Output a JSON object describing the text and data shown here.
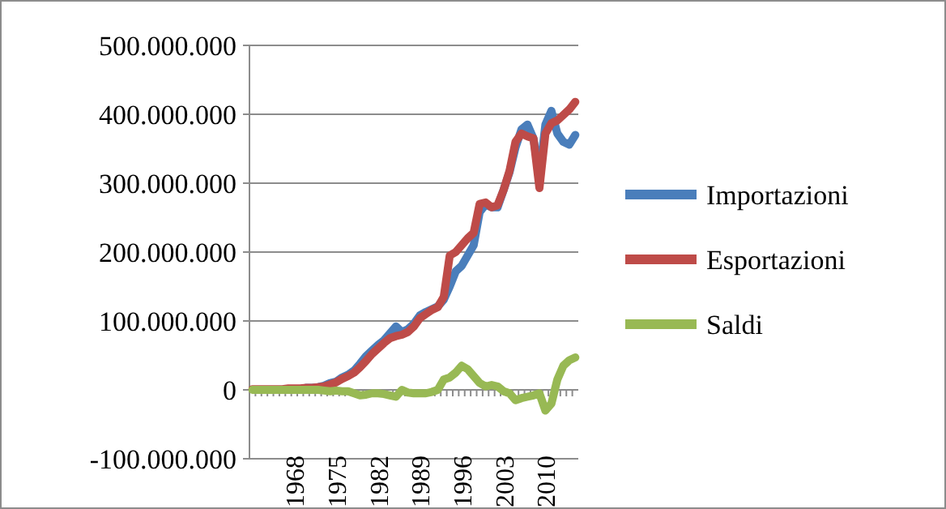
{
  "chart_data": {
    "type": "line",
    "categories": [
      null,
      null,
      null,
      null,
      null,
      null,
      null,
      "1968",
      null,
      null,
      null,
      null,
      null,
      null,
      "1975",
      null,
      null,
      null,
      null,
      null,
      null,
      "1982",
      null,
      null,
      null,
      null,
      null,
      null,
      "1989",
      null,
      null,
      null,
      null,
      null,
      null,
      "1996",
      null,
      null,
      null,
      null,
      null,
      null,
      "2003",
      null,
      null,
      null,
      null,
      null,
      null,
      "2010",
      null,
      null,
      null,
      null,
      null
    ],
    "series": [
      {
        "name": "Importazioni",
        "color": "#4a7ebb",
        "values": [
          null,
          null,
          null,
          null,
          null,
          null,
          null,
          null,
          null,
          3000000,
          3000000,
          4000000,
          6000000,
          10000000,
          12000000,
          18000000,
          22000000,
          28000000,
          38000000,
          49000000,
          57000000,
          65000000,
          72000000,
          82000000,
          92000000,
          84000000,
          88000000,
          96000000,
          108000000,
          113000000,
          117000000,
          121000000,
          131000000,
          150000000,
          172000000,
          180000000,
          195000000,
          210000000,
          258000000,
          269000000,
          265000000,
          265000000,
          290000000,
          316000000,
          352000000,
          378000000,
          385000000,
          365000000,
          310000000,
          385000000,
          405000000,
          372000000,
          360000000,
          356000000,
          370000000
        ]
      },
      {
        "name": "Esportazioni",
        "color": "#be4b48",
        "values": [
          1000000,
          1000000,
          1000000,
          1000000,
          1000000,
          1000000,
          2000000,
          2000000,
          2000000,
          3000000,
          3000000,
          4000000,
          5000000,
          8000000,
          11000000,
          16000000,
          20000000,
          25000000,
          33000000,
          42000000,
          52000000,
          60000000,
          68000000,
          75000000,
          78000000,
          80000000,
          84000000,
          92000000,
          104000000,
          110000000,
          116000000,
          120000000,
          135000000,
          195000000,
          200000000,
          210000000,
          220000000,
          228000000,
          270000000,
          272000000,
          265000000,
          268000000,
          290000000,
          318000000,
          360000000,
          372000000,
          368000000,
          365000000,
          293000000,
          372000000,
          387000000,
          391000000,
          399000000,
          407000000,
          418000000
        ]
      },
      {
        "name": "Saldi",
        "color": "#98b954",
        "values": [
          0,
          0,
          0,
          0,
          0,
          0,
          0,
          0,
          0,
          0,
          0,
          0,
          -1000000,
          -2000000,
          -1000000,
          -2000000,
          -2000000,
          -5000000,
          -8000000,
          -7000000,
          -5000000,
          -5000000,
          -6000000,
          -8000000,
          -10000000,
          0,
          -4000000,
          -5000000,
          -5000000,
          -5000000,
          -3000000,
          0,
          15000000,
          18000000,
          25000000,
          35000000,
          30000000,
          20000000,
          10000000,
          5000000,
          7000000,
          5000000,
          -2000000,
          -5000000,
          -15000000,
          -12000000,
          -10000000,
          -8000000,
          -5000000,
          -30000000,
          -20000000,
          15000000,
          35000000,
          43000000,
          47000000
        ]
      }
    ],
    "ylim": [
      -100000000,
      500000000
    ],
    "yticks": [
      {
        "value": -100000000,
        "label": "-100.000.000"
      },
      {
        "value": 0,
        "label": "0"
      },
      {
        "value": 100000000,
        "label": "100.000.000"
      },
      {
        "value": 200000000,
        "label": "200.000.000"
      },
      {
        "value": 300000000,
        "label": "300.000.000"
      },
      {
        "value": 400000000,
        "label": "400.000.000"
      },
      {
        "value": 500000000,
        "label": "500.000.000"
      }
    ],
    "grid": "y",
    "legend": "right",
    "marker": "none",
    "line_style": "solid"
  }
}
